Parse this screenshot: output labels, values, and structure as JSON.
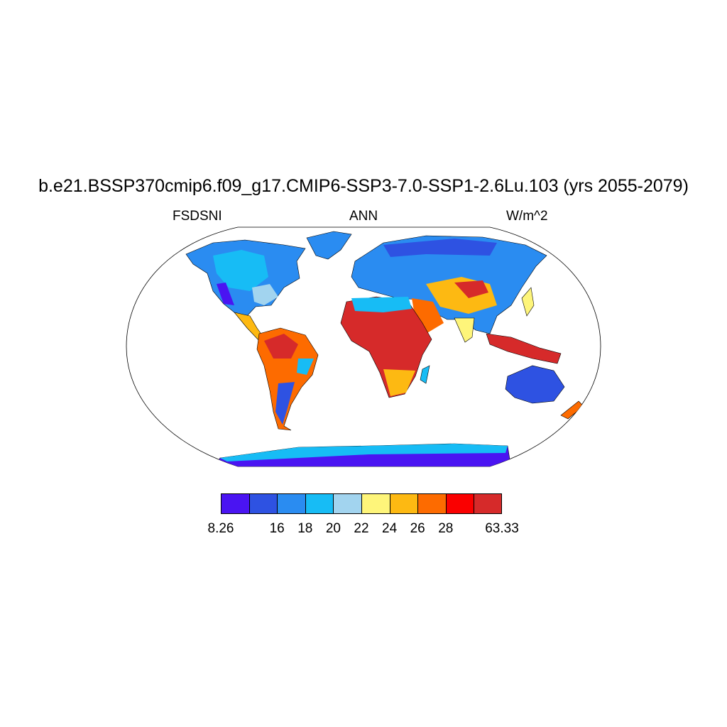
{
  "title": "b.e21.BSSP370cmip6.f09_g17.CMIP6-SSP3-7.0-SSP1-2.6Lu.103 (yrs 2055-2079)",
  "subtitle": {
    "left": "FSDSNI",
    "center": "ANN",
    "right": "W/m^2"
  },
  "colorbar": {
    "colors": [
      "#4a14f2",
      "#2e52e2",
      "#2a8cf1",
      "#17bcf5",
      "#a2d4ef",
      "#fef57a",
      "#fdb912",
      "#fd6b00",
      "#fa0000",
      "#d62a2a"
    ],
    "labels": [
      "8.26",
      "16",
      "18",
      "20",
      "22",
      "24",
      "26",
      "28",
      "63.33"
    ],
    "label_boundaries": [
      0,
      2,
      3,
      4,
      5,
      6,
      7,
      8,
      10
    ]
  },
  "map": {
    "projection": "Robinson",
    "variable": "FSDSNI",
    "season": "ANN",
    "units": "W/m^2"
  }
}
